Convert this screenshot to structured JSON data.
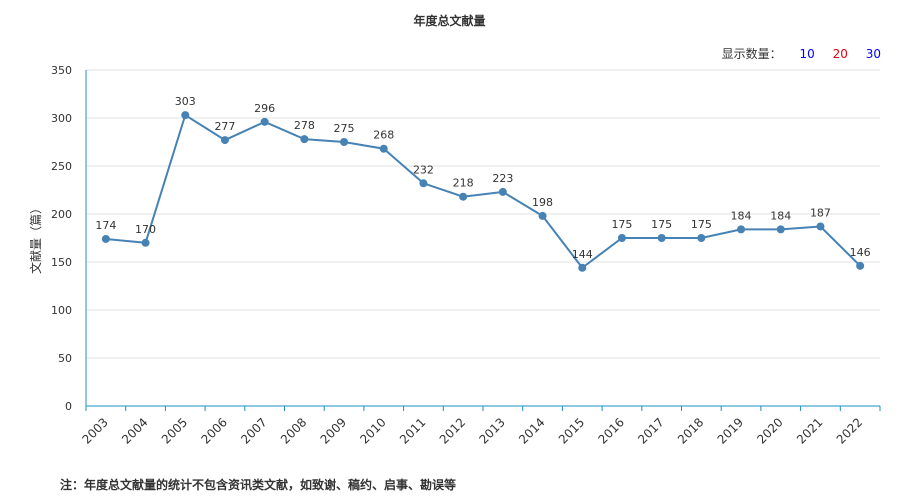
{
  "chart_data": {
    "type": "line",
    "title": "年度总文献量",
    "ylabel": "文献量（篇）",
    "xlabel": "",
    "ylim": [
      0,
      350
    ],
    "yticks": [
      0,
      50,
      100,
      150,
      200,
      250,
      300,
      350
    ],
    "grid": true,
    "categories": [
      "2003",
      "2004",
      "2005",
      "2006",
      "2007",
      "2008",
      "2009",
      "2010",
      "2011",
      "2012",
      "2013",
      "2014",
      "2015",
      "2016",
      "2017",
      "2018",
      "2019",
      "2020",
      "2021",
      "2022"
    ],
    "values": [
      174,
      170,
      303,
      277,
      296,
      278,
      275,
      268,
      232,
      218,
      223,
      198,
      144,
      175,
      175,
      175,
      184,
      184,
      187,
      146
    ],
    "line_color": "#4682b4",
    "axis_color": "#1f8fbf",
    "grid_color": "#e0e0e0"
  },
  "display_count": {
    "label": "显示数量：",
    "options": [
      "10",
      "20",
      "30"
    ],
    "option_colors": [
      "#0000ff",
      "#e60012",
      "#0000ff"
    ]
  },
  "footnote": "注：年度总文献量的统计不包含资讯类文献，如致谢、稿约、启事、勘误等"
}
